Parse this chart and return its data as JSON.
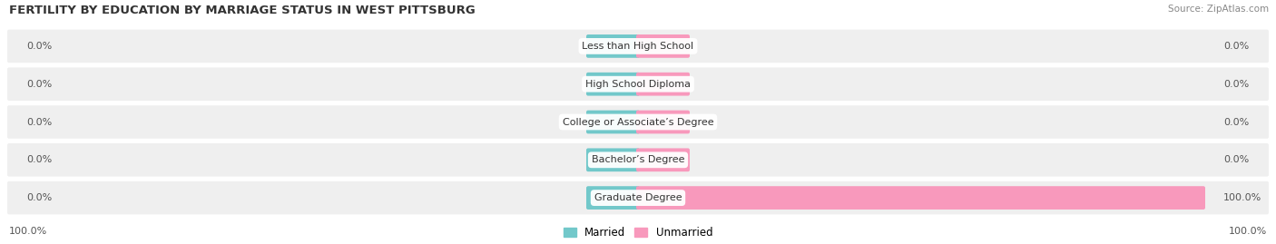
{
  "title": "FERTILITY BY EDUCATION BY MARRIAGE STATUS IN WEST PITTSBURG",
  "source": "Source: ZipAtlas.com",
  "categories": [
    "Less than High School",
    "High School Diploma",
    "College or Associate’s Degree",
    "Bachelor’s Degree",
    "Graduate Degree"
  ],
  "married_values": [
    0.0,
    0.0,
    0.0,
    0.0,
    0.0
  ],
  "unmarried_values": [
    0.0,
    0.0,
    0.0,
    0.0,
    100.0
  ],
  "married_color": "#72c8ca",
  "unmarried_color": "#f899bc",
  "row_bg_color": "#efefef",
  "background_color": "#ffffff",
  "title_fontsize": 9.5,
  "label_fontsize": 8,
  "legend_fontsize": 8.5,
  "source_fontsize": 7.5,
  "bottom_left_label": "100.0%",
  "bottom_right_label": "100.0%"
}
